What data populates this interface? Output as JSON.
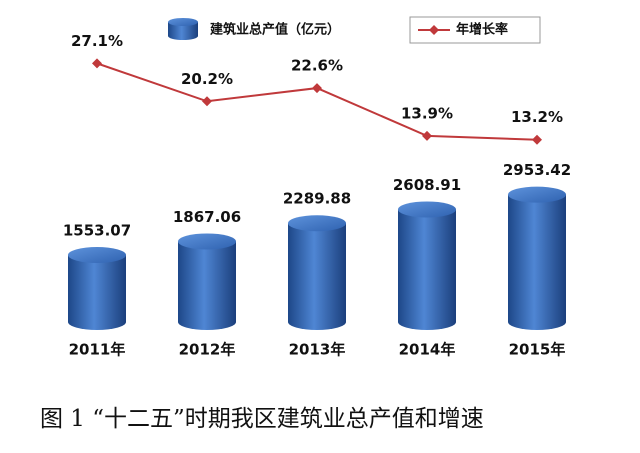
{
  "chart_data": {
    "type": "bar-line",
    "caption": "图 1   “十二五”时期我区建筑业总产值和增速",
    "categories": [
      "2011年",
      "2012年",
      "2013年",
      "2014年",
      "2015年"
    ],
    "series": [
      {
        "name": "建筑业总产值（亿元）",
        "type": "bar",
        "color": "#2f62b0",
        "values": [
          1553.07,
          1867.06,
          2289.88,
          2608.91,
          2953.42
        ]
      },
      {
        "name": "年增长率",
        "type": "line",
        "axis": "y2",
        "color": "#c0393b",
        "values": [
          27.1,
          20.2,
          22.6,
          13.9,
          13.2
        ],
        "value_labels": [
          "27.1%",
          "20.2%",
          "22.6%",
          "13.9%",
          "13.2%"
        ]
      }
    ],
    "ylim": [
      0,
      7000
    ],
    "y2lim": [
      -20,
      35
    ]
  }
}
